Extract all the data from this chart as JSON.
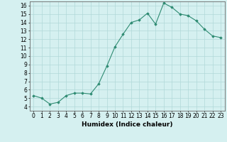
{
  "x": [
    0,
    1,
    2,
    3,
    4,
    5,
    6,
    7,
    8,
    9,
    10,
    11,
    12,
    13,
    14,
    15,
    16,
    17,
    18,
    19,
    20,
    21,
    22,
    23
  ],
  "y": [
    5.3,
    5.0,
    4.3,
    4.5,
    5.3,
    5.6,
    5.6,
    5.5,
    6.7,
    8.8,
    11.1,
    12.6,
    14.0,
    14.3,
    15.1,
    13.8,
    16.3,
    15.8,
    15.0,
    14.8,
    14.2,
    13.2,
    12.4,
    12.2
  ],
  "xlabel": "Humidex (Indice chaleur)",
  "xlim": [
    -0.5,
    23.5
  ],
  "ylim": [
    3.5,
    16.5
  ],
  "yticks": [
    4,
    5,
    6,
    7,
    8,
    9,
    10,
    11,
    12,
    13,
    14,
    15,
    16
  ],
  "xticks": [
    0,
    1,
    2,
    3,
    4,
    5,
    6,
    7,
    8,
    9,
    10,
    11,
    12,
    13,
    14,
    15,
    16,
    17,
    18,
    19,
    20,
    21,
    22,
    23
  ],
  "line_color": "#2e8b72",
  "marker_color": "#2e8b72",
  "bg_color": "#d5f0f0",
  "grid_color": "#b0d8d8",
  "label_fontsize": 6.5,
  "tick_fontsize": 5.5
}
